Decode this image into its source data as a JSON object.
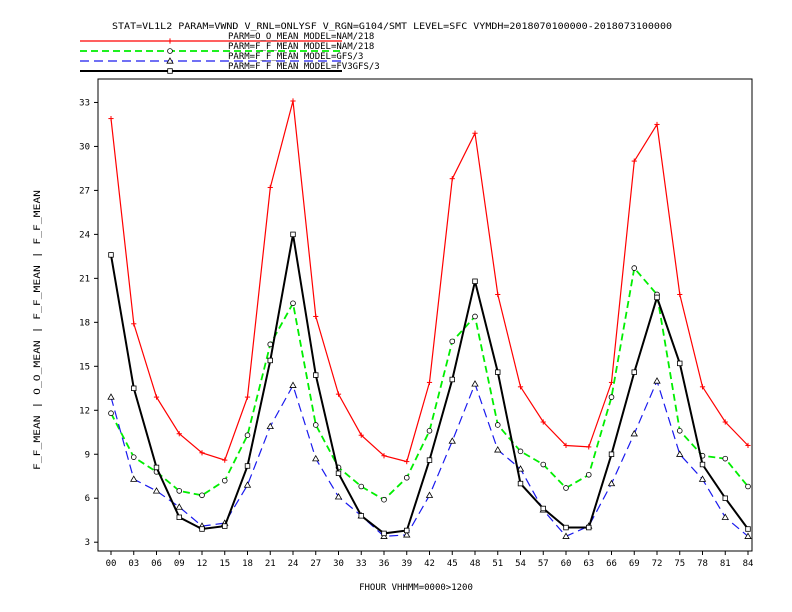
{
  "chart_data": {
    "type": "line",
    "title": "STAT=VL1L2 PARAM=VWND V_RNL=ONLYSF V_RGN=G104/SMT LEVEL=SFC VYMDH=2018070100000-2018073100000",
    "xlabel": "FHOUR VHHMM=0000>1200",
    "ylabel": "F_F_MEAN | O_O_MEAN | F_F_MEAN | F_F_MEAN",
    "categories": [
      "00",
      "03",
      "06",
      "09",
      "12",
      "15",
      "18",
      "21",
      "24",
      "27",
      "30",
      "33",
      "36",
      "39",
      "42",
      "45",
      "48",
      "51",
      "54",
      "57",
      "60",
      "63",
      "66",
      "69",
      "72",
      "75",
      "78",
      "81",
      "84"
    ],
    "ylim": [
      2.4,
      34.6
    ],
    "yticks": [
      3,
      6,
      9,
      12,
      15,
      18,
      21,
      24,
      27,
      30,
      33
    ],
    "grid": false,
    "legend_position": "top-left",
    "series": [
      {
        "name": "PARM=O_O_MEAN MODEL=NAM/218",
        "color": "#ff0000",
        "dash": "solid",
        "marker": "plus",
        "values": [
          31.9,
          17.9,
          12.9,
          10.4,
          9.1,
          8.6,
          12.9,
          27.2,
          33.1,
          18.4,
          13.1,
          10.3,
          8.9,
          8.5,
          13.9,
          27.8,
          30.9,
          19.9,
          13.6,
          11.2,
          9.6,
          9.5,
          13.9,
          29.0,
          31.5,
          19.9,
          13.6,
          11.2,
          9.6
        ]
      },
      {
        "name": "PARM=F_F_MEAN MODEL=NAM/218",
        "color": "#00ee00",
        "dash": "green",
        "marker": "circle",
        "values": [
          11.8,
          8.8,
          7.8,
          6.5,
          6.2,
          7.2,
          10.3,
          16.5,
          19.3,
          11.0,
          8.1,
          6.8,
          5.9,
          7.4,
          10.6,
          16.7,
          18.4,
          11.0,
          9.2,
          8.3,
          6.7,
          7.6,
          12.9,
          21.7,
          19.9,
          10.6,
          8.9,
          8.7,
          6.8
        ]
      },
      {
        "name": "PARM=F_F_MEAN MODEL=GFS/3",
        "color": "#1a1aee",
        "dash": "blue",
        "marker": "triangle",
        "values": [
          12.9,
          7.3,
          6.5,
          5.4,
          4.1,
          4.3,
          6.9,
          10.9,
          13.7,
          8.7,
          6.1,
          4.8,
          3.4,
          3.5,
          6.2,
          9.9,
          13.8,
          9.3,
          8.0,
          5.2,
          3.4,
          4.1,
          7.0,
          10.4,
          14.0,
          9.0,
          7.3,
          4.7,
          3.4
        ]
      },
      {
        "name": "PARM=F_F_MEAN MODEL=FV3GFS/3",
        "color": "#000000",
        "dash": "solid",
        "marker": "square",
        "values": [
          22.6,
          13.5,
          8.1,
          4.7,
          3.9,
          4.1,
          8.2,
          15.4,
          24.0,
          14.4,
          7.7,
          4.8,
          3.6,
          3.8,
          8.6,
          14.1,
          20.8,
          14.6,
          7.0,
          5.3,
          4.0,
          4.0,
          9.0,
          14.6,
          19.7,
          15.2,
          8.3,
          6.0,
          3.9
        ]
      }
    ]
  }
}
